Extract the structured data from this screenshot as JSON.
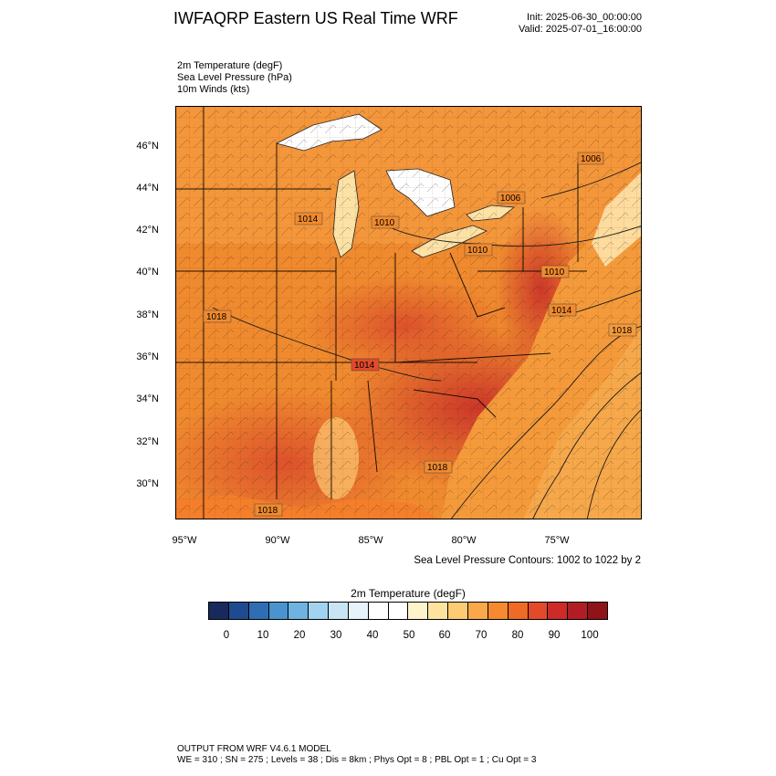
{
  "header": {
    "title": "IWFAQRP Eastern US Real Time WRF",
    "init": "Init: 2025-06-30_00:00:00",
    "valid": "Valid: 2025-07-01_16:00:00"
  },
  "fields": [
    "2m Temperature   (degF)",
    "Sea Level Pressure   (hPa)",
    "10m Winds   (kts)"
  ],
  "map": {
    "lat_labels": [
      "46°N",
      "44°N",
      "42°N",
      "40°N",
      "38°N",
      "36°N",
      "34°N",
      "32°N",
      "30°N"
    ],
    "lon_labels": [
      "95°W",
      "90°W",
      "85°W",
      "80°W",
      "75°W"
    ],
    "contour_labels": [
      "1006",
      "1006",
      "1014",
      "1010",
      "1010",
      "1010",
      "1018",
      "1014",
      "1018",
      "1014",
      "1018",
      "1018"
    ],
    "slp_note": "Sea Level Pressure Contours: 1002 to 1022 by 2"
  },
  "colorbar": {
    "title": "2m Temperature  (degF)",
    "labels": [
      "0",
      "10",
      "20",
      "30",
      "40",
      "50",
      "60",
      "70",
      "80",
      "90",
      "100"
    ],
    "colors": [
      "#182A5C",
      "#1F4A8F",
      "#2F6EB5",
      "#4A93CF",
      "#6FB3E0",
      "#A1D2F0",
      "#C8E5F6",
      "#E6F3FB",
      "#FFFFFF",
      "#FFFFFF",
      "#FFF3CC",
      "#FEE39E",
      "#FDCB72",
      "#FBA84A",
      "#F78A2E",
      "#EE6A25",
      "#E24A2A",
      "#CD2A2A",
      "#B21C24",
      "#8F1418"
    ]
  },
  "footer": {
    "line1": "OUTPUT FROM WRF V4.6.1 MODEL",
    "line2": "WE = 310 ; SN = 275 ; Levels = 38 ; Dis = 8km ; Phys Opt = 8 ; PBL Opt = 1 ; Cu Opt = 3"
  }
}
